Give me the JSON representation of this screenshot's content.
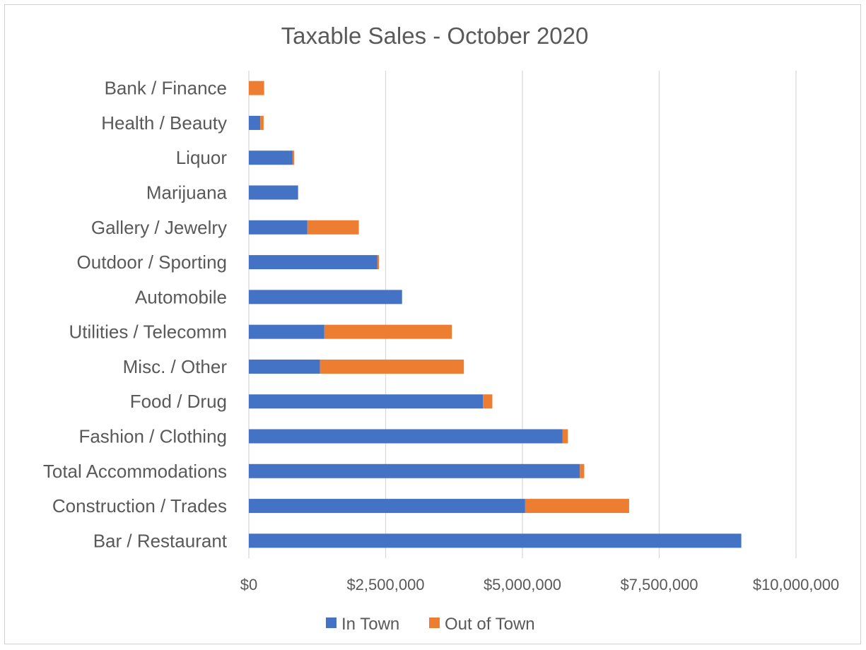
{
  "chart_data": {
    "type": "bar",
    "orientation": "horizontal",
    "stacked": true,
    "title": "Taxable Sales - October 2020",
    "categories": [
      "Bar / Restaurant",
      "Construction / Trades",
      "Total Accommodations",
      "Fashion / Clothing",
      "Food / Drug",
      "Misc. / Other",
      "Utilities / Telecomm",
      "Automobile",
      "Outdoor / Sporting",
      "Gallery / Jewelry",
      "Marijuana",
      "Liquor",
      "Health / Beauty",
      "Bank / Finance"
    ],
    "series": [
      {
        "name": "In Town",
        "color": "#4472c4",
        "values": [
          9000000,
          5050000,
          6050000,
          5730000,
          4280000,
          1300000,
          1380000,
          2800000,
          2350000,
          1070000,
          900000,
          800000,
          210000,
          0
        ]
      },
      {
        "name": "Out of Town",
        "color": "#ed7d31",
        "values": [
          0,
          1900000,
          80000,
          100000,
          170000,
          2630000,
          2330000,
          0,
          30000,
          940000,
          0,
          30000,
          60000,
          280000
        ]
      }
    ],
    "xlim": [
      0,
      10000000
    ],
    "x_ticks": [
      0,
      2500000,
      5000000,
      7500000,
      10000000
    ],
    "x_tick_labels": [
      "$0",
      "$2,500,000",
      "$5,000,000",
      "$7,500,000",
      "$10,000,000"
    ],
    "grid": true,
    "legend_position": "bottom"
  }
}
